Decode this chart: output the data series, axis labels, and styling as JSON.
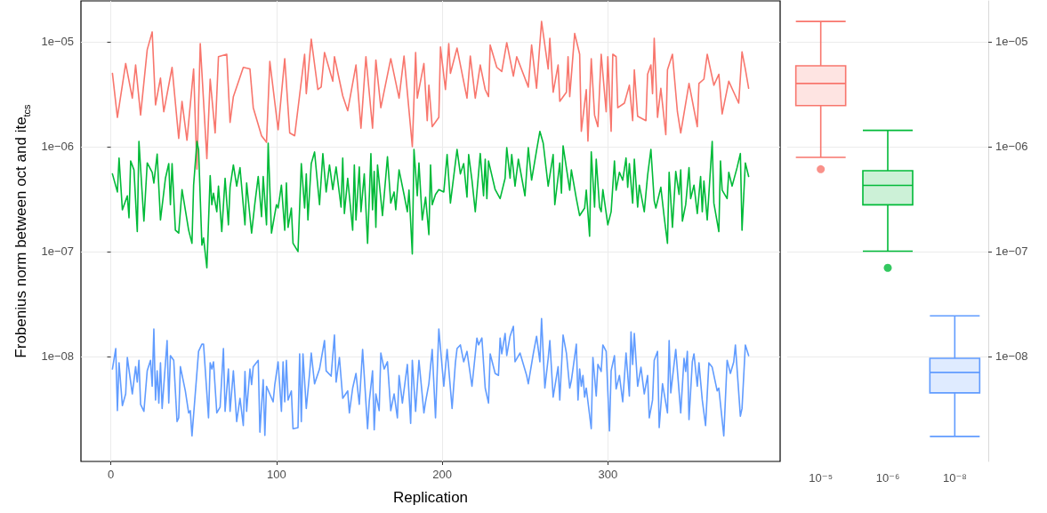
{
  "chart_data": [
    {
      "type": "line",
      "xlabel": "Replication",
      "ylabel": "Frobenius norm between oct and ite$_{tcs}$",
      "log": "y",
      "grid": true,
      "marker": "none",
      "line_style": "solid",
      "xlim": [
        -18,
        404
      ],
      "xticks": [
        0,
        100,
        200,
        300
      ],
      "ylim": [
        1e-09,
        2.45e-05
      ],
      "yticks": [
        {
          "value": 1e-05,
          "label": "1e−05"
        },
        {
          "value": 1e-06,
          "label": "1e−06"
        },
        {
          "value": 1e-07,
          "label": "1e−07"
        },
        {
          "value": 1e-08,
          "label": "1e−08"
        }
      ],
      "series": [
        {
          "color": "#f8766d",
          "x": [
            1,
            4,
            9,
            13,
            15,
            18,
            22,
            25,
            27,
            30,
            32,
            37,
            41,
            43,
            46,
            50,
            52,
            54,
            58,
            60,
            63,
            65,
            70,
            72,
            74,
            80,
            84,
            86,
            91,
            94,
            96,
            101,
            105,
            108,
            111,
            117,
            118,
            121,
            125,
            127,
            129,
            134,
            135,
            140,
            143,
            148,
            151,
            154,
            158,
            160,
            163,
            169,
            174,
            177,
            182,
            184,
            185,
            189,
            191,
            192,
            194,
            198,
            199,
            202,
            204,
            205,
            209,
            215,
            217,
            220,
            223,
            226,
            228,
            229,
            233,
            236,
            239,
            243,
            245,
            252,
            254,
            257,
            260,
            264,
            265,
            267,
            270,
            271,
            275,
            276,
            277,
            280,
            283,
            284,
            287,
            288,
            290,
            292,
            294,
            296,
            299,
            300,
            302,
            303,
            305,
            306,
            310,
            313,
            315,
            316,
            318,
            323,
            324,
            326,
            327,
            328,
            330,
            332,
            335,
            336,
            339,
            342,
            344,
            349,
            354,
            355,
            358,
            360,
            364,
            367,
            369,
            373,
            376,
            379,
            381,
            383,
            385
          ],
          "values": [
            5e-06,
            1.9e-06,
            6.2e-06,
            2.9e-06,
            6e-06,
            2e-06,
            8.4e-06,
            1.24e-05,
            2.5e-06,
            4.5e-06,
            2.15e-06,
            5.7e-06,
            1.2e-06,
            2.7e-06,
            1.15e-06,
            5.5e-06,
            6.1e-07,
            9.6e-06,
            7.7e-07,
            4.4e-06,
            1.35e-06,
            7.2e-06,
            7.6e-06,
            1.7e-06,
            3e-06,
            5.7e-06,
            5.5e-06,
            2.35e-06,
            1.27e-06,
            1.1e-06,
            6.5e-06,
            1.45e-06,
            6.9e-06,
            1.35e-06,
            1.27e-06,
            7.6e-06,
            3.2e-06,
            1.06e-05,
            3.5e-06,
            3.7e-06,
            7.9e-06,
            4.2e-06,
            7.2e-06,
            3.05e-06,
            2.2e-06,
            6e-06,
            1.5e-06,
            7.2e-06,
            1.5e-06,
            6.7e-06,
            2.35e-06,
            6.9e-06,
            2.9e-06,
            7.3e-06,
            1e-06,
            7.9e-06,
            2.9e-06,
            6.2e-06,
            1.77e-06,
            3.85e-06,
            1.55e-06,
            1.9e-06,
            8.9e-06,
            3.5e-06,
            9.6e-06,
            5e-06,
            8.7e-06,
            2.9e-06,
            7.3e-06,
            2.9e-06,
            6e-06,
            3.5e-06,
            3e-06,
            9.3e-06,
            5.7e-06,
            5.2e-06,
            9.8e-06,
            4.7e-06,
            7.2e-06,
            3.7e-06,
            9.3e-06,
            3.6e-06,
            1.56e-05,
            5.5e-06,
            1.08e-05,
            3.3e-06,
            6e-06,
            2.7e-06,
            3.3e-06,
            7.2e-06,
            3e-06,
            1.2e-05,
            7.6e-06,
            1.4e-06,
            3.5e-06,
            1.13e-06,
            6.9e-06,
            2e-06,
            1.55e-06,
            7.6e-06,
            2.15e-06,
            7.2e-06,
            1.4e-06,
            7.6e-06,
            7.2e-06,
            2.35e-06,
            2.6e-06,
            3.85e-06,
            1.77e-06,
            5.4e-06,
            1.95e-06,
            1.77e-06,
            4.9e-06,
            6e-06,
            3.2e-06,
            1.08e-05,
            1.9e-06,
            3.6e-06,
            1.3e-06,
            5.4e-06,
            7.6e-06,
            2.15e-06,
            1.35e-06,
            4e-06,
            1.55e-06,
            4e-06,
            4.4e-06,
            7.6e-06,
            3.85e-06,
            4.9e-06,
            2.05e-06,
            4.2e-06,
            3.3e-06,
            2.6e-06,
            8e-06,
            5.5e-06,
            3.6e-06
          ]
        },
        {
          "color": "#00ba38",
          "x": [
            1,
            4,
            5,
            7,
            10,
            11,
            12,
            14,
            16,
            17,
            20,
            22,
            25,
            26,
            28,
            30,
            33,
            35,
            36,
            37,
            39,
            41,
            43,
            47,
            49,
            50,
            52,
            53,
            55,
            56,
            58,
            60,
            61,
            62,
            64,
            65,
            67,
            69,
            71,
            72,
            74,
            76,
            78,
            81,
            82,
            85,
            87,
            89,
            91,
            92,
            94,
            95,
            97,
            100,
            101,
            103,
            105,
            106,
            107,
            109,
            110,
            113,
            115,
            117,
            118,
            119,
            121,
            123,
            126,
            128,
            130,
            132,
            134,
            136,
            139,
            140,
            141,
            143,
            146,
            147,
            148,
            150,
            151,
            153,
            155,
            157,
            158,
            159,
            160,
            161,
            164,
            167,
            169,
            171,
            172,
            174,
            177,
            179,
            180,
            182,
            183,
            185,
            186,
            188,
            190,
            192,
            193,
            194,
            196,
            198,
            201,
            203,
            205,
            209,
            211,
            213,
            215,
            216,
            218,
            220,
            223,
            225,
            226,
            227,
            228,
            232,
            235,
            238,
            239,
            241,
            242,
            244,
            246,
            250,
            252,
            254,
            257,
            259,
            261,
            264,
            267,
            268,
            271,
            272,
            273,
            277,
            278,
            281,
            283,
            286,
            287,
            289,
            290,
            292,
            293,
            295,
            296,
            297,
            300,
            302,
            304,
            305,
            307,
            309,
            311,
            312,
            313,
            315,
            316,
            318,
            319,
            322,
            324,
            326,
            328,
            329,
            332,
            334,
            336,
            337,
            339,
            341,
            343,
            344,
            345,
            347,
            349,
            350,
            352,
            354,
            356,
            357,
            358,
            360,
            363,
            364,
            367,
            368,
            369,
            372,
            373,
            375,
            378,
            380,
            381,
            383,
            385
          ],
          "values": [
            5.5e-07,
            3.7e-07,
            7.8e-07,
            2.5e-07,
            3.4e-07,
            2.1e-07,
            7.3e-07,
            6e-07,
            1.55e-07,
            1.12e-06,
            1.95e-07,
            7e-07,
            5.7e-07,
            4.5e-07,
            8.5e-07,
            2e-07,
            5e-07,
            6.9e-07,
            2.8e-07,
            6.9e-07,
            1.6e-07,
            1.5e-07,
            3.9e-07,
            1.6e-07,
            1.2e-07,
            4.3e-07,
            1.12e-06,
            9.4e-07,
            1.15e-07,
            1.35e-07,
            7e-08,
            5.3e-07,
            2.8e-07,
            3.6e-07,
            2.4e-07,
            4.2e-07,
            1.55e-07,
            5e-07,
            1.8e-07,
            4.1e-07,
            6.7e-07,
            4.2e-07,
            6.3e-07,
            1.8e-07,
            4.5e-07,
            1.5e-07,
            2.9e-07,
            5.2e-07,
            2.15e-07,
            5.2e-07,
            1.8e-07,
            1.08e-06,
            1.5e-07,
            2.8e-07,
            2.6e-07,
            4.3e-07,
            1.6e-07,
            4.5e-07,
            1.7e-07,
            2.6e-07,
            1.2e-07,
            1e-07,
            6.9e-07,
            2.6e-07,
            5.5e-07,
            2e-07,
            6.9e-07,
            8.9e-07,
            2.8e-07,
            8.6e-07,
            3.7e-07,
            6.7e-07,
            3.9e-07,
            6.4e-07,
            2.65e-07,
            7.8e-07,
            2.3e-07,
            5e-07,
            1.6e-07,
            6.7e-07,
            2e-07,
            6.4e-07,
            2.4e-07,
            5.5e-07,
            1.2e-07,
            8.6e-07,
            2.5e-07,
            5.8e-07,
            1.7e-07,
            6.7e-07,
            2.2e-07,
            8e-07,
            2.9e-07,
            3.7e-07,
            2.5e-07,
            6e-07,
            3.5e-07,
            2.4e-07,
            3.85e-07,
            9.5e-08,
            9.4e-07,
            3.4e-07,
            7e-07,
            2e-07,
            3.3e-07,
            1.45e-07,
            6.7e-07,
            2.8e-07,
            3.5e-07,
            3.9e-07,
            3.7e-07,
            8.4e-07,
            2.9e-07,
            9.4e-07,
            5.5e-07,
            6.9e-07,
            3.3e-07,
            8.4e-07,
            4.8e-07,
            2.4e-07,
            8.6e-07,
            3.4e-07,
            7.6e-07,
            3.2e-07,
            7.3e-07,
            3.9e-07,
            3.2e-07,
            5e-07,
            9.8e-07,
            5e-07,
            8.4e-07,
            4.2e-07,
            7.6e-07,
            3.4e-07,
            9.8e-07,
            4.8e-07,
            9.2e-07,
            1.4e-06,
            1.08e-06,
            4.2e-07,
            8.4e-07,
            2.8e-07,
            7e-07,
            3.6e-07,
            1.02e-06,
            3.85e-07,
            6e-07,
            3.2e-07,
            2.2e-07,
            2.6e-07,
            3.85e-07,
            1.4e-07,
            8.9e-07,
            2.65e-07,
            7.6e-07,
            2.65e-07,
            2.4e-07,
            3.9e-07,
            1.8e-07,
            2.4e-07,
            7.3e-07,
            3.85e-07,
            5.7e-07,
            4.8e-07,
            7.8e-07,
            4.1e-07,
            6.9e-07,
            2.9e-07,
            7.6e-07,
            2.65e-07,
            4.3e-07,
            2.4e-07,
            5.3e-07,
            9.4e-07,
            3.05e-07,
            2.6e-07,
            4.1e-07,
            2.15e-07,
            1.2e-07,
            5.7e-07,
            1.7e-07,
            5.8e-07,
            3.5e-07,
            6e-07,
            1.95e-07,
            2.8e-07,
            6.3e-07,
            3.2e-07,
            4.3e-07,
            2.3e-07,
            5.2e-07,
            2.4e-07,
            4.7e-07,
            2e-07,
            1.12e-06,
            2.9e-07,
            1.55e-07,
            7.3e-07,
            3.85e-07,
            3.2e-07,
            5.7e-07,
            4.2e-07,
            6.3e-07,
            8.6e-07,
            1.6e-07,
            7e-07,
            5.2e-07
          ]
        },
        {
          "color": "#619cff",
          "x": [
            1,
            3,
            4,
            5,
            7,
            9,
            10,
            13,
            15,
            16,
            17,
            18,
            20,
            22,
            24,
            25,
            26,
            27,
            28,
            29,
            30,
            31,
            34,
            35,
            36,
            38,
            40,
            41,
            42,
            45,
            47,
            48,
            49,
            53,
            55,
            56,
            59,
            60,
            61,
            62,
            64,
            66,
            68,
            69,
            71,
            72,
            74,
            76,
            78,
            80,
            81,
            82,
            84,
            85,
            86,
            89,
            90,
            92,
            93,
            94,
            98,
            99,
            101,
            103,
            104,
            105,
            106,
            107,
            109,
            110,
            113,
            114,
            115,
            116,
            118,
            120,
            121,
            123,
            126,
            129,
            130,
            133,
            135,
            136,
            138,
            140,
            143,
            144,
            146,
            148,
            150,
            152,
            155,
            156,
            158,
            159,
            160,
            162,
            163,
            165,
            167,
            169,
            171,
            173,
            174,
            176,
            179,
            181,
            182,
            184,
            186,
            189,
            190,
            192,
            194,
            196,
            198,
            201,
            203,
            206,
            208,
            209,
            211,
            213,
            215,
            218,
            221,
            222,
            224,
            226,
            228,
            229,
            232,
            234,
            235,
            236,
            238,
            239,
            241,
            243,
            244,
            247,
            251,
            252,
            255,
            257,
            259,
            260,
            262,
            264,
            265,
            267,
            270,
            271,
            273,
            275,
            277,
            278,
            281,
            282,
            283,
            284,
            285,
            286,
            287,
            290,
            291,
            293,
            294,
            296,
            297,
            299,
            301,
            302,
            304,
            305,
            307,
            309,
            311,
            313,
            314,
            315,
            316,
            318,
            320,
            322,
            324,
            325,
            327,
            328,
            330,
            331,
            333,
            336,
            337,
            338,
            341,
            344,
            346,
            347,
            348,
            349,
            351,
            352,
            354,
            355,
            357,
            359,
            361,
            363,
            366,
            367,
            370,
            372,
            374,
            376,
            377,
            380,
            381,
            383,
            385
          ],
          "values": [
            7.6e-09,
            1.19e-08,
            3.05e-09,
            8.7e-09,
            3.4e-09,
            4.4e-09,
            9.8e-09,
            4.4e-09,
            8e-09,
            5.7e-09,
            9.2e-09,
            3.5e-09,
            3e-09,
            7.3e-09,
            9.2e-09,
            5.2e-09,
            1.83e-08,
            3.85e-09,
            7.3e-09,
            3.6e-09,
            8.7e-09,
            3.2e-09,
            1.42e-08,
            3.6e-09,
            1.02e-08,
            9.2e-09,
            2.4e-09,
            2.6e-09,
            8e-09,
            4.7e-09,
            2.9e-09,
            3.05e-09,
            1.75e-09,
            1.12e-08,
            1.31e-08,
            1.31e-08,
            2.6e-09,
            8.7e-09,
            7.6e-09,
            8.9e-09,
            2.9e-09,
            3.3e-09,
            1.19e-08,
            3e-09,
            7.6e-09,
            3e-09,
            7.3e-09,
            2.4e-09,
            4e-09,
            2.2e-09,
            7.2e-09,
            3e-09,
            7.6e-09,
            5.4e-09,
            8e-09,
            9.2e-09,
            1.9e-09,
            6e-09,
            1.77e-09,
            5.2e-09,
            3.7e-09,
            5.4e-09,
            8.9e-09,
            3e-09,
            8.9e-09,
            3.7e-09,
            9.2e-09,
            3.85e-09,
            4.7e-09,
            2.05e-09,
            2.1e-09,
            1.06e-08,
            2.4e-09,
            1.06e-08,
            3.2e-09,
            6.9e-09,
            1.08e-08,
            5.5e-09,
            7.6e-09,
            1.42e-08,
            7.3e-09,
            6.5e-09,
            1.6e-08,
            5.7e-09,
            9.8e-09,
            4e-09,
            4.7e-09,
            2.9e-09,
            5e-09,
            6.9e-09,
            3.5e-09,
            1.17e-08,
            2.05e-09,
            3.7e-09,
            7.3e-09,
            2e-09,
            4.4e-09,
            3.05e-09,
            1.08e-08,
            7.6e-09,
            8.9e-09,
            3.05e-09,
            4.4e-09,
            2.6e-09,
            6.6e-09,
            3.6e-09,
            8.4e-09,
            2.3e-09,
            9.2e-09,
            3e-09,
            9.2e-09,
            2.9e-09,
            3.7e-09,
            5.5e-09,
            1.17e-08,
            2.6e-09,
            1.83e-08,
            5.2e-09,
            1.17e-08,
            3.2e-09,
            8.7e-09,
            1.19e-08,
            1.29e-08,
            8.9e-09,
            1.12e-08,
            5.2e-09,
            1.5e-08,
            1.29e-08,
            1.5e-08,
            5e-09,
            3.6e-09,
            1.06e-08,
            6.9e-09,
            6.6e-09,
            1.5e-08,
            1.06e-08,
            1.66e-08,
            1.02e-08,
            1.56e-08,
            1.94e-08,
            8.9e-09,
            1.08e-08,
            6.6e-09,
            5.5e-09,
            1.06e-08,
            1.56e-08,
            8.9e-09,
            2.3e-08,
            5e-09,
            9.6e-09,
            1.42e-08,
            4.1e-09,
            8e-09,
            3.85e-09,
            1.6e-08,
            1.08e-08,
            5e-09,
            5.9e-09,
            1.31e-08,
            3.85e-09,
            7.6e-09,
            5.2e-09,
            6.6e-09,
            4.1e-09,
            5e-09,
            2.05e-09,
            9.8e-09,
            4.2e-09,
            8.4e-09,
            7.2e-09,
            1.29e-08,
            1.12e-08,
            1.95e-09,
            7.3e-09,
            1.02e-08,
            4.9e-09,
            6.6e-09,
            3.7e-09,
            1.08e-08,
            4.2e-09,
            1.72e-08,
            8.4e-09,
            1.66e-08,
            5.2e-09,
            7.9e-09,
            4.4e-09,
            6.6e-09,
            2.6e-09,
            3.85e-09,
            9.2e-09,
            1.12e-08,
            2.1e-09,
            5.5e-09,
            2.9e-09,
            1.42e-08,
            4.5e-09,
            1.17e-08,
            2.9e-09,
            9.6e-09,
            7.2e-09,
            1.12e-08,
            2.5e-09,
            8.9e-09,
            1.06e-08,
            5.2e-09,
            8.7e-09,
            3.85e-09,
            2.2e-09,
            8.7e-09,
            7.9e-09,
            4.7e-09,
            5e-09,
            1.75e-09,
            9.2e-09,
            6.9e-09,
            8.9e-09,
            1.29e-08,
            2.7e-09,
            3.2e-09,
            1.29e-08,
            1.02e-08
          ]
        }
      ]
    },
    {
      "type": "box",
      "log": "y",
      "grid": "y",
      "categories": [
        "10⁻⁵",
        "10⁻⁶",
        "10⁻⁸"
      ],
      "colors": [
        "#f8766d",
        "#00ba38",
        "#619cff"
      ],
      "ylim": [
        1e-09,
        2.45e-05
      ],
      "yticks": [
        {
          "value": 1e-05,
          "label": "1e−05"
        },
        {
          "value": 1e-06,
          "label": "1e−06"
        },
        {
          "value": 1e-07,
          "label": "1e−07"
        },
        {
          "value": 1e-08,
          "label": "1e−08"
        }
      ],
      "boxes": [
        {
          "low": 7.9e-07,
          "q1": 2.46e-06,
          "median": 4e-06,
          "q3": 5.9e-06,
          "high": 1.56e-05,
          "outliers": [
            6.1e-07
          ]
        },
        {
          "low": 1.01e-07,
          "q1": 2.79e-07,
          "median": 4.27e-07,
          "q3": 5.9e-07,
          "high": 1.43e-06,
          "outliers": [
            7e-08
          ]
        },
        {
          "low": 1.73e-09,
          "q1": 4.5e-09,
          "median": 7.05e-09,
          "q3": 9.6e-09,
          "high": 2.44e-08
        }
      ]
    }
  ]
}
